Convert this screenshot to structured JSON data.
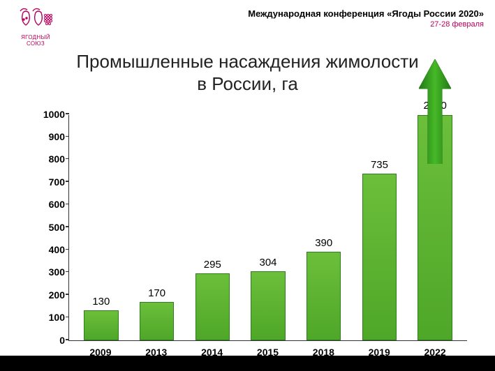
{
  "header": {
    "logo_line1": "ЯГОДНЫЙ",
    "logo_line2": "СОЮЗ",
    "logo_color": "#b8005c",
    "conference_title": "Международная конференция «Ягоды России 2020»",
    "conference_date": "27-28 февраля"
  },
  "chart": {
    "type": "bar",
    "title_line1": "Промышленные насаждения жимолости",
    "title_line2": "в России, га",
    "title_fontsize": 26,
    "categories": [
      "2009",
      "2013",
      "2014",
      "2015",
      "2018",
      "2019",
      "2022"
    ],
    "values": [
      130,
      170,
      295,
      304,
      390,
      735,
      2000
    ],
    "value_labels": [
      "130",
      "170",
      "295",
      "304",
      "390",
      "735",
      "2000"
    ],
    "ylim": [
      0,
      1000
    ],
    "ytick_step": 100,
    "bar_fill": "#6bbf3a",
    "bar_border": "#2e7d1e",
    "arrow_color": "#2e9b1f",
    "arrow_on_index": 6,
    "axis_color": "#333333",
    "text_color": "#000000",
    "background_color": "#ffffff",
    "label_fontsize": 14,
    "value_label_fontsize": 15,
    "bar_width": 0.62
  },
  "footer": {
    "color": "#000000"
  }
}
